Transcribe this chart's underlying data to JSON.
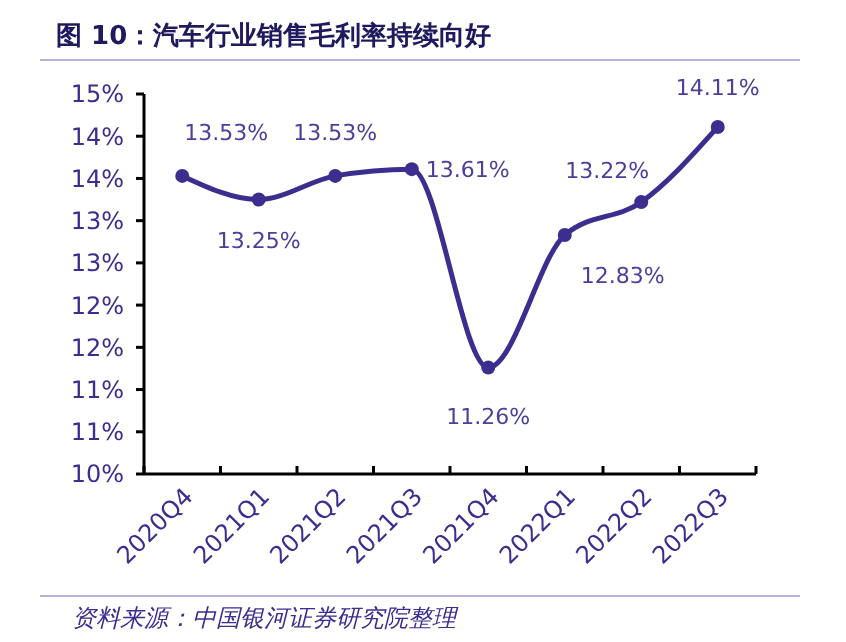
{
  "chart_data": {
    "type": "line",
    "title": "图 10：汽车行业销售毛利率持续向好",
    "categories": [
      "2020Q4",
      "2021Q1",
      "2021Q2",
      "2021Q3",
      "2021Q4",
      "2022Q1",
      "2022Q2",
      "2022Q3"
    ],
    "series": [
      {
        "color": "#3b2e8e",
        "values": [
          13.53,
          13.25,
          13.53,
          13.61,
          11.26,
          12.83,
          13.22,
          14.11
        ],
        "value_labels": [
          "13.53%",
          "13.25%",
          "13.53%",
          "13.61%",
          "11.26%",
          "12.83%",
          "13.22%",
          "14.11%"
        ]
      }
    ],
    "ylim": [
      10,
      14.5
    ],
    "yticks": [
      {
        "value": 10,
        "label": "10%"
      },
      {
        "value": 10.5,
        "label": "11%"
      },
      {
        "value": 11,
        "label": "11%"
      },
      {
        "value": 11.5,
        "label": "12%"
      },
      {
        "value": 12,
        "label": "12%"
      },
      {
        "value": 12.5,
        "label": "13%"
      },
      {
        "value": 13,
        "label": "13%"
      },
      {
        "value": 13.5,
        "label": "14%"
      },
      {
        "value": 14,
        "label": "14%"
      },
      {
        "value": 14.5,
        "label": "15%"
      }
    ],
    "marker": "circle",
    "line_style": "solid",
    "annotations": [
      "资料来源：中国银河证券研究院整理"
    ]
  }
}
